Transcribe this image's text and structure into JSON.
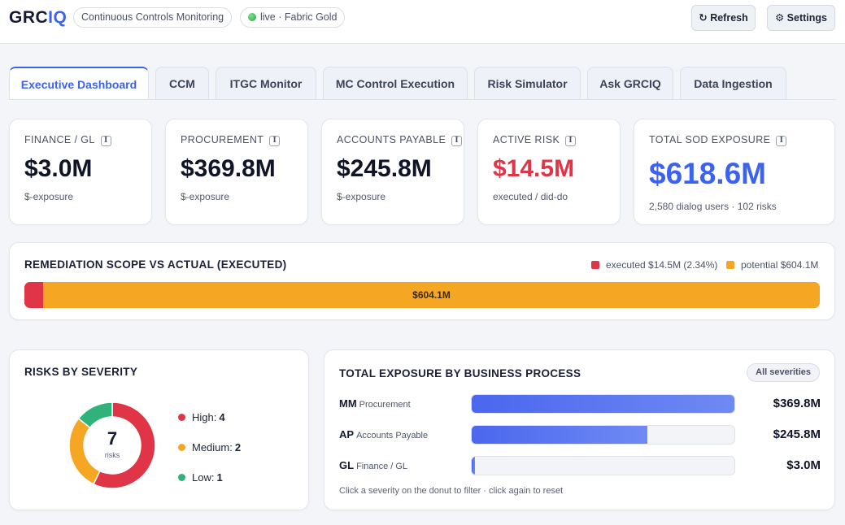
{
  "app": {
    "brand_a": "GRC",
    "brand_b": "IQ",
    "module": "Continuous Controls Monitoring",
    "status": "live · Fabric Gold",
    "refresh": "↻ Refresh",
    "settings": "⚙ Settings"
  },
  "tabs": [
    {
      "label": "Executive Dashboard",
      "active": true
    },
    {
      "label": "CCM"
    },
    {
      "label": "ITGC Monitor"
    },
    {
      "label": "MC Control Execution"
    },
    {
      "label": "Risk Simulator"
    },
    {
      "label": "Ask GRCIQ"
    },
    {
      "label": "Data Ingestion"
    }
  ],
  "kpis": [
    {
      "label": "FINANCE / GL",
      "value": "$3.0M",
      "sub": "$-exposure"
    },
    {
      "label": "PROCUREMENT",
      "value": "$369.8M",
      "sub": "$-exposure"
    },
    {
      "label": "ACCOUNTS PAYABLE",
      "value": "$245.8M",
      "sub": "$-exposure"
    },
    {
      "label": "ACTIVE RISK",
      "value": "$14.5M",
      "sub": "executed / did-do",
      "color": "#e03546"
    },
    {
      "label": "TOTAL SOD EXPOSURE",
      "value": "$618.6M",
      "sub": "2,580 dialog users · 102 risks",
      "color": "#3b63f0"
    }
  ],
  "info_icon": "I",
  "remediation": {
    "title": "REMEDIATION SCOPE VS ACTUAL (EXECUTED)",
    "legend_executed": "executed $14.5M (2.34%)",
    "legend_potential": "potential $604.1M",
    "executed_pct": 2.34,
    "bar_label": "$604.1M",
    "colors": {
      "executed": "#e03546",
      "potential": "#f5a623"
    }
  },
  "severity": {
    "title": "RISKS BY SEVERITY",
    "total": "7",
    "total_label": "risks",
    "items": [
      {
        "label": "High:",
        "count": "4",
        "value": 4,
        "color": "#e03546"
      },
      {
        "label": "Medium:",
        "count": "2",
        "value": 2,
        "color": "#f5a623"
      },
      {
        "label": "Low:",
        "count": "1",
        "value": 1,
        "color": "#2fb37a"
      }
    ]
  },
  "exposure": {
    "title": "TOTAL EXPOSURE BY BUSINESS PROCESS",
    "filter": "All severities",
    "rows": [
      {
        "code": "MM",
        "name": "Procurement",
        "value": "$369.8M",
        "amount": 369.8
      },
      {
        "code": "AP",
        "name": "Accounts Payable",
        "value": "$245.8M",
        "amount": 245.8
      },
      {
        "code": "GL",
        "name": "Finance / GL",
        "value": "$3.0M",
        "amount": 3.0
      }
    ],
    "max_amount": 369.8,
    "hint": "Click a severity on the donut to filter · click again to reset"
  }
}
